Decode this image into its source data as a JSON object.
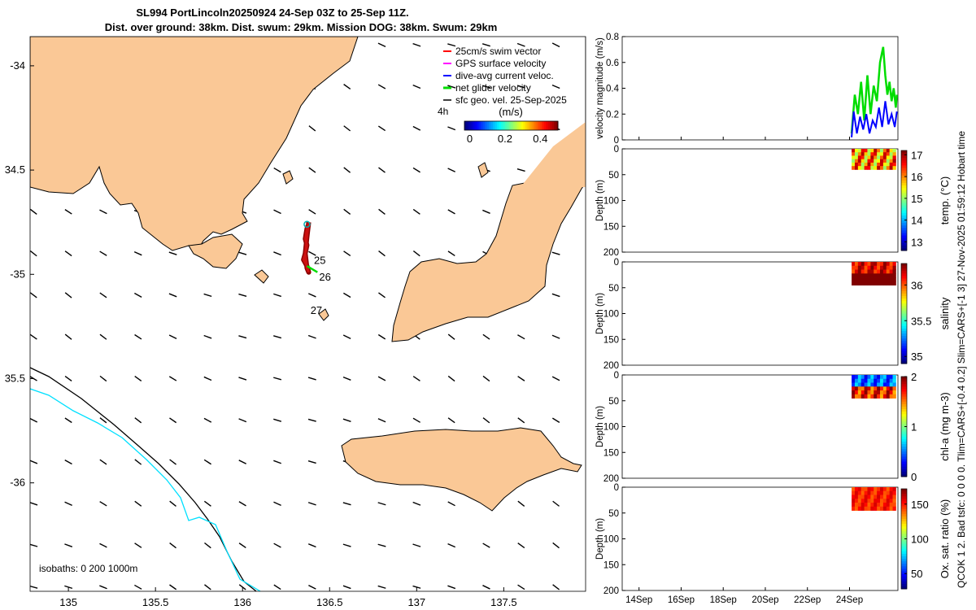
{
  "title": {
    "line1": "SL994 PortLincoln20250924 24-Sep 03Z to 25-Sep 11Z.",
    "line2": "Dist. over ground: 38km. Dist. swum: 29km. Mission DOG: 38km. Swum: 29km"
  },
  "side_note": "QCOK 1  2. Bad tsfc: 0  0  0  0. Tlim=CARS+[-0.4 0.2] Slim=CARS+[-1 3] 27-Nov-2025 01:59:12 Hobart time",
  "colors": {
    "land": "#fac896",
    "coast": "#000000",
    "isobath_200": "#000000",
    "isobath_1000": "#00e0ff",
    "net_velocity": "#00dd00",
    "dive_avg": "#0000ff",
    "gps": "#ff00ff",
    "swim": "#ff0000"
  },
  "chart_data": [
    {
      "type": "scatter",
      "name": "map",
      "xlim": [
        134.78,
        137.97
      ],
      "ylim": [
        -36.52,
        -33.86
      ],
      "x_ticks": [
        135,
        135.5,
        136,
        136.5,
        137,
        137.5
      ],
      "x_tick_labels": [
        "135",
        "135.5",
        "136",
        "136.5",
        "137",
        "137.5"
      ],
      "y_ticks": [
        -34,
        -34.5,
        -35,
        -35.5,
        -36
      ],
      "y_tick_labels": [
        "-34",
        "34.5",
        "-35",
        "35.5",
        "-36"
      ],
      "legend": {
        "placement": "top-right",
        "items": [
          "25cm/s swim vector",
          "GPS surface velocity",
          "dive-avg current veloc.",
          "net glider velocity",
          "sfc geo. vel. 25-Sep-2025"
        ]
      },
      "colorbar": {
        "label": "(m/s)",
        "ticks": [
          0,
          0.2,
          0.4
        ],
        "tick_labels": [
          "0",
          "0.2",
          "0.4"
        ],
        "lim": [
          -0.03,
          0.5
        ]
      },
      "arrow_scale_label": "4h",
      "isobath_label": "isobaths: 0   200  1000m",
      "track": {
        "lon": [
          136.38,
          136.37,
          136.36,
          136.37,
          136.36,
          136.35,
          136.37,
          136.38,
          136.37,
          136.36,
          136.37,
          136.38
        ],
        "lat": [
          -34.76,
          -34.78,
          -34.83,
          -34.86,
          -34.9,
          -34.93,
          -34.96,
          -34.99,
          -34.97,
          -34.9,
          -34.82,
          -34.75
        ]
      },
      "day_labels": [
        {
          "text": "25",
          "lon": 136.41,
          "lat": -34.95
        },
        {
          "text": "26",
          "lon": 136.44,
          "lat": -35.03
        },
        {
          "text": "27",
          "lon": 136.39,
          "lat": -35.19
        }
      ]
    },
    {
      "type": "line",
      "name": "velocity",
      "ylabel": "velocity magnitude (m/s)",
      "ylim": [
        0,
        0.8
      ],
      "y_ticks": [
        0,
        0.2,
        0.4,
        0.6,
        0.8
      ],
      "y_tick_labels": [
        "0",
        "0.2",
        "0.4",
        "0.6",
        "0.8"
      ],
      "xlim": [
        13.2,
        26.3
      ],
      "x_ticks": [
        14,
        16,
        18,
        20,
        22,
        24
      ],
      "x_tick_labels": [
        "14Sep",
        "16Sep",
        "18Sep",
        "20Sep",
        "22Sep",
        "24Sep"
      ],
      "series": [
        {
          "x": [
            24.1,
            24.25,
            24.4,
            24.55,
            24.7,
            24.85,
            25.0,
            25.15,
            25.3,
            25.45,
            25.6,
            25.7,
            25.8,
            25.9,
            26.0,
            26.1,
            26.2,
            26.25
          ],
          "values": [
            0.05,
            0.35,
            0.2,
            0.45,
            0.15,
            0.5,
            0.2,
            0.42,
            0.3,
            0.6,
            0.72,
            0.5,
            0.35,
            0.45,
            0.3,
            0.4,
            0.25,
            0.35
          ]
        },
        {
          "x": [
            24.1,
            24.2,
            24.35,
            24.5,
            24.65,
            24.8,
            24.95,
            25.1,
            25.25,
            25.4,
            25.55,
            25.7,
            25.85,
            26.0,
            26.15,
            26.25
          ],
          "values": [
            0.02,
            0.22,
            0.05,
            0.18,
            0.08,
            0.2,
            0.05,
            0.15,
            0.1,
            0.25,
            0.1,
            0.3,
            0.12,
            0.2,
            0.1,
            0.22
          ]
        }
      ]
    },
    {
      "type": "heatmap",
      "name": "temperature",
      "ylabel": "Depth (m)",
      "ylim": [
        0,
        200
      ],
      "y_ticks": [
        0,
        50,
        100,
        150,
        200
      ],
      "y_tick_labels": [
        "0",
        "50",
        "100",
        "150",
        "200"
      ],
      "xlim": [
        13.2,
        26.3
      ],
      "colorbar": {
        "label": "temp. (°C)",
        "lim": [
          12.6,
          17.2
        ],
        "ticks": [
          13,
          14,
          15,
          16,
          17
        ],
        "tick_labels": [
          "13",
          "14",
          "15",
          "16",
          "17"
        ]
      },
      "data_x": [
        24.1,
        26.2
      ],
      "data_depth": [
        0,
        40
      ],
      "range": [
        15.0,
        17.0
      ]
    },
    {
      "type": "heatmap",
      "name": "salinity",
      "ylabel": "Depth (m)",
      "ylim": [
        0,
        200
      ],
      "y_ticks": [
        0,
        50,
        100,
        150,
        200
      ],
      "y_tick_labels": [
        "0",
        "50",
        "100",
        "150",
        "200"
      ],
      "xlim": [
        13.2,
        26.3
      ],
      "colorbar": {
        "label": "salinity",
        "lim": [
          34.9,
          36.3
        ],
        "ticks": [
          35,
          35.5,
          36
        ],
        "tick_labels": [
          "35",
          "35.5",
          "36"
        ]
      },
      "data_x": [
        24.1,
        26.2
      ],
      "data_depth": [
        0,
        45
      ],
      "range": [
        36.0,
        36.3
      ]
    },
    {
      "type": "heatmap",
      "name": "chlorophyll",
      "ylabel": "Depth (m)",
      "ylim": [
        0,
        200
      ],
      "y_ticks": [
        0,
        50,
        100,
        150,
        200
      ],
      "y_tick_labels": [
        "0",
        "50",
        "100",
        "150",
        "200"
      ],
      "xlim": [
        13.2,
        26.3
      ],
      "colorbar": {
        "label": "chl-a (mg m-3)",
        "lim": [
          0,
          2
        ],
        "ticks": [
          0,
          1,
          2
        ],
        "tick_labels": [
          "0",
          "1",
          "2"
        ]
      },
      "data_x": [
        24.1,
        26.2
      ],
      "data_depth": [
        0,
        45
      ],
      "range": [
        0.2,
        2.0
      ]
    },
    {
      "type": "heatmap",
      "name": "oxygen",
      "ylabel": "Depth (m)",
      "ylim": [
        0,
        200
      ],
      "y_ticks": [
        0,
        50,
        100,
        150,
        200
      ],
      "y_tick_labels": [
        "0",
        "50",
        "100",
        "150",
        "200"
      ],
      "xlim": [
        13.2,
        26.3
      ],
      "x_ticks": [
        14,
        16,
        18,
        20,
        22,
        24
      ],
      "x_tick_labels": [
        "14Sep",
        "16Sep",
        "18Sep",
        "20Sep",
        "22Sep",
        "24Sep"
      ],
      "colorbar": {
        "label": "Ox. sat. ratio (%)",
        "lim": [
          28,
          172
        ],
        "ticks": [
          50,
          100,
          150
        ],
        "tick_labels": [
          "50",
          "100",
          "150"
        ]
      },
      "data_x": [
        24.1,
        26.2
      ],
      "data_depth": [
        0,
        45
      ],
      "range": [
        140,
        160
      ]
    }
  ]
}
